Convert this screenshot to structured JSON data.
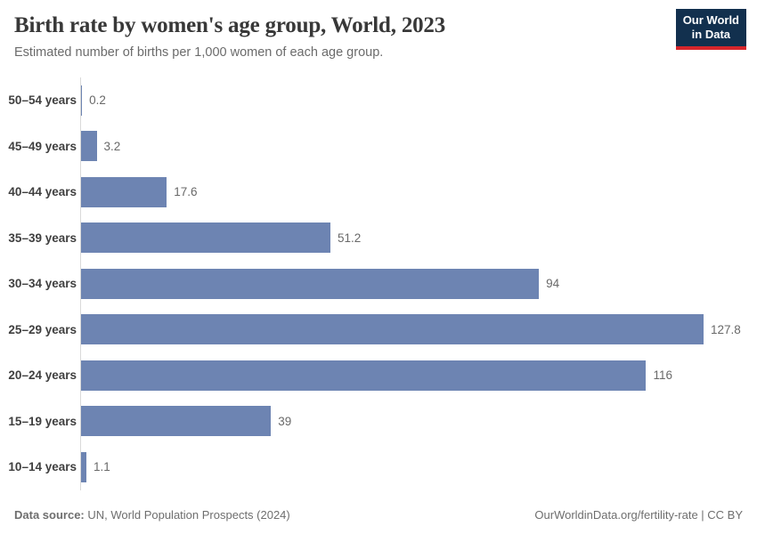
{
  "header": {
    "title": "Birth rate by women's age group, World, 2023",
    "subtitle": "Estimated number of births per 1,000 women of each age group."
  },
  "logo": {
    "line1": "Our World",
    "line2": "in Data",
    "bg_color": "#12304e",
    "accent_color": "#d7262b"
  },
  "chart_data": {
    "type": "bar",
    "orientation": "horizontal",
    "title": "Birth rate by women's age group, World, 2023",
    "xlabel": "",
    "ylabel": "",
    "grid": false,
    "legend": false,
    "xlim": [
      0,
      127.8
    ],
    "bar_color": "#6d84b2",
    "categories": [
      "50–54 years",
      "45–49 years",
      "40–44 years",
      "35–39 years",
      "30–34 years",
      "25–29 years",
      "20–24 years",
      "15–19 years",
      "10–14 years"
    ],
    "values": [
      0.2,
      3.2,
      17.6,
      51.2,
      94,
      127.8,
      116,
      39,
      1.1
    ],
    "value_labels": [
      "0.2",
      "3.2",
      "17.6",
      "51.2",
      "94",
      "127.8",
      "116",
      "39",
      "1.1"
    ]
  },
  "footer": {
    "source_label": "Data source:",
    "source_value": "UN, World Population Prospects (2024)",
    "right_text": "OurWorldinData.org/fertility-rate | CC BY"
  }
}
